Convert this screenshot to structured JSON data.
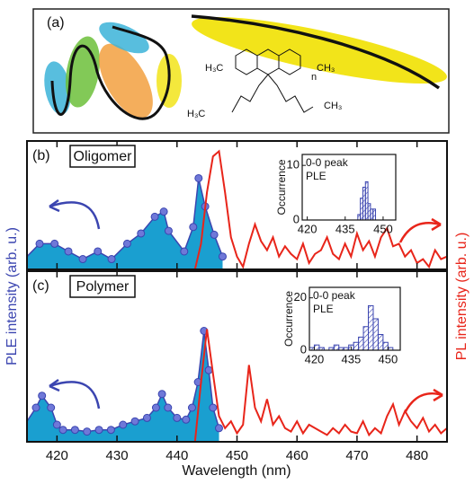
{
  "panel_a": {
    "label": "(a)",
    "structure_labels": [
      "H₃C",
      "CH₃",
      "n",
      "H₃C",
      "CH₃"
    ]
  },
  "figure": {
    "xlabel": "Wavelength (nm)",
    "ylabel": "PLE intensity (arb. u.)",
    "y2label": "PL intensity (arb. u.)"
  },
  "chart_data": [
    {
      "type": "line",
      "panel_label": "(b)",
      "title": "Oligomer",
      "xlim": [
        415,
        485
      ],
      "xticks": [
        420,
        430,
        440,
        450,
        460,
        470,
        480
      ],
      "show_xticklabels": false,
      "ylim": [
        0,
        1
      ],
      "y2lim": [
        0,
        1
      ],
      "series": [
        {
          "color": "#3b45b0",
          "fill": "#1a9fd0",
          "x": [
            415,
            417.1,
            419.6,
            421.9,
            424.3,
            426.8,
            429.1,
            431.7,
            434.0,
            436.3,
            437.8,
            438.6,
            441.2,
            442.7,
            443.6,
            444.7,
            446.2,
            447.6
          ],
          "values": [
            0.1,
            0.2,
            0.2,
            0.14,
            0.08,
            0.14,
            0.08,
            0.2,
            0.28,
            0.41,
            0.45,
            0.3,
            0.14,
            0.33,
            0.71,
            0.49,
            0.27,
            0.1
          ]
        },
        {
          "axis": "y2",
          "color": "#e8251a",
          "x": [
            443,
            444,
            445,
            446,
            447,
            448,
            449,
            450,
            451,
            452,
            453,
            454,
            455,
            456,
            457,
            458,
            459,
            460,
            461,
            462,
            463,
            464,
            465,
            466,
            467,
            468,
            469,
            470,
            471,
            472,
            473,
            474,
            475,
            476,
            477,
            478,
            479,
            480,
            481,
            482,
            483,
            484,
            485
          ],
          "values": [
            0.0,
            0.2,
            0.6,
            0.88,
            0.92,
            0.6,
            0.25,
            0.1,
            0.02,
            0.2,
            0.35,
            0.22,
            0.15,
            0.25,
            0.1,
            0.18,
            0.12,
            0.08,
            0.2,
            0.05,
            0.12,
            0.15,
            0.25,
            0.12,
            0.08,
            0.2,
            0.1,
            0.28,
            0.15,
            0.22,
            0.1,
            0.25,
            0.32,
            0.18,
            0.2,
            0.1,
            0.15,
            0.05,
            0.08,
            0.02,
            0.15,
            0.08,
            0.1
          ]
        }
      ]
    },
    {
      "type": "histogram",
      "ylabel": "Occurrence",
      "annotation": [
        "0-0 peak",
        "PLE"
      ],
      "color": "#3b45b0",
      "xlim": [
        418,
        455
      ],
      "xticks": [
        420,
        435,
        450
      ],
      "ylim": [
        0,
        12
      ],
      "yticks": [
        0,
        10
      ],
      "bins": [
        440,
        441,
        442,
        443,
        444,
        445,
        446,
        447
      ],
      "values": [
        1,
        4,
        6,
        7,
        3,
        2,
        2
      ]
    },
    {
      "type": "line",
      "panel_label": "(c)",
      "title": "Polymer",
      "xlim": [
        415,
        485
      ],
      "xticks": [
        420,
        430,
        440,
        450,
        460,
        470,
        480
      ],
      "show_xticklabels": true,
      "ylim": [
        0,
        1
      ],
      "y2lim": [
        0,
        1
      ],
      "series": [
        {
          "color": "#3b45b0",
          "fill": "#1a9fd0",
          "x": [
            415,
            416.5,
            417.5,
            419,
            420,
            421,
            423,
            425,
            427,
            429,
            431,
            433,
            435,
            436.5,
            437.5,
            438.5,
            440,
            441.5,
            442.5,
            443.5,
            444.5,
            445.3,
            446,
            447
          ],
          "values": [
            0.12,
            0.2,
            0.27,
            0.2,
            0.1,
            0.07,
            0.07,
            0.06,
            0.07,
            0.07,
            0.1,
            0.12,
            0.14,
            0.2,
            0.28,
            0.2,
            0.14,
            0.13,
            0.2,
            0.35,
            0.65,
            0.42,
            0.2,
            0.08
          ]
        },
        {
          "axis": "y2",
          "color": "#e8251a",
          "x": [
            443,
            444,
            445,
            446,
            447,
            448,
            449,
            450,
            451,
            452,
            453,
            454,
            455,
            456,
            457,
            458,
            459,
            460,
            461,
            462,
            463,
            464,
            465,
            466,
            467,
            468,
            469,
            470,
            471,
            472,
            473,
            474,
            475,
            476,
            477,
            478,
            479,
            480,
            481,
            482,
            483,
            484,
            485
          ],
          "values": [
            0.0,
            0.35,
            0.66,
            0.4,
            0.15,
            0.08,
            0.12,
            0.05,
            0.1,
            0.45,
            0.2,
            0.12,
            0.25,
            0.1,
            0.15,
            0.08,
            0.06,
            0.12,
            0.05,
            0.1,
            0.08,
            0.06,
            0.04,
            0.08,
            0.05,
            0.1,
            0.06,
            0.05,
            0.12,
            0.04,
            0.08,
            0.05,
            0.15,
            0.22,
            0.1,
            0.18,
            0.12,
            0.08,
            0.14,
            0.06,
            0.1,
            0.05,
            0.08
          ]
        }
      ]
    },
    {
      "type": "histogram",
      "ylabel": "Occurrence",
      "annotation": [
        "0-0 peak",
        "PLE"
      ],
      "color": "#3b45b0",
      "xlim": [
        418,
        455
      ],
      "xticks": [
        420,
        435,
        450
      ],
      "ylim": [
        0,
        24
      ],
      "yticks": [
        0,
        20
      ],
      "bins": [
        418,
        420,
        422,
        424,
        426,
        428,
        430,
        432,
        434,
        436,
        438,
        440,
        442,
        444,
        446,
        448,
        450,
        452
      ],
      "values": [
        1,
        2,
        1,
        0,
        1,
        2,
        1,
        1,
        2,
        3,
        5,
        9,
        17,
        12,
        6,
        3,
        1
      ]
    }
  ]
}
